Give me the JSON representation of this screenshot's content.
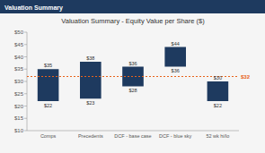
{
  "chart_data": {
    "type": "floating_bar",
    "title": "Valuation Summary - Equity Value per Share ($)",
    "subtitle": "Valuation Summary",
    "categories": [
      "Comps",
      "Precedents",
      "DCF - base case",
      "DCF - blue sky",
      "52 wk hi/lo"
    ],
    "low": [
      22,
      23,
      28,
      36,
      22
    ],
    "high": [
      35,
      38,
      36,
      44,
      30
    ],
    "low_labels": [
      "$22",
      "$23",
      "$28",
      "$36",
      "$22"
    ],
    "high_labels": [
      "$35",
      "$38",
      "$36",
      "$44",
      "$30"
    ],
    "data_labels": true,
    "color": "#1e3a5f",
    "reference_line": {
      "value": 32,
      "label": "$32",
      "color": "#e8621a"
    },
    "ylim": [
      10,
      50
    ],
    "yticks": [
      {
        "value": 10,
        "label": "$10"
      },
      {
        "value": 15,
        "label": "$15"
      },
      {
        "value": 20,
        "label": "$20"
      },
      {
        "value": 25,
        "label": "$25"
      },
      {
        "value": 30,
        "label": "$30"
      },
      {
        "value": 35,
        "label": "$35"
      },
      {
        "value": 40,
        "label": "$40"
      },
      {
        "value": 45,
        "label": "$45"
      },
      {
        "value": 50,
        "label": "$50"
      }
    ],
    "grid": false
  }
}
